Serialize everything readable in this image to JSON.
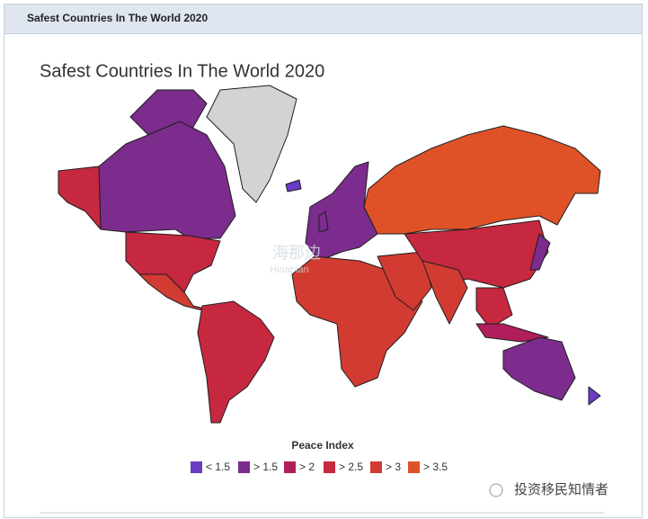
{
  "header": {
    "title": "Safest Countries In The World 2020"
  },
  "chart": {
    "title": "Safest Countries In The World 2020",
    "legend": {
      "title": "Peace Index",
      "items": [
        {
          "label": "< 1.5",
          "color": "#6a3cc4"
        },
        {
          "label": "> 1.5",
          "color": "#7c2c8c"
        },
        {
          "label": "> 2",
          "color": "#b01f5c"
        },
        {
          "label": "> 2.5",
          "color": "#c62840"
        },
        {
          "label": "> 3",
          "color": "#d13b32"
        },
        {
          "label": "> 3.5",
          "color": "#df5228"
        }
      ]
    }
  },
  "watermark": {
    "logo": "海那边",
    "logo_latin": "Hinabian",
    "account": "投资移民知情者"
  }
}
